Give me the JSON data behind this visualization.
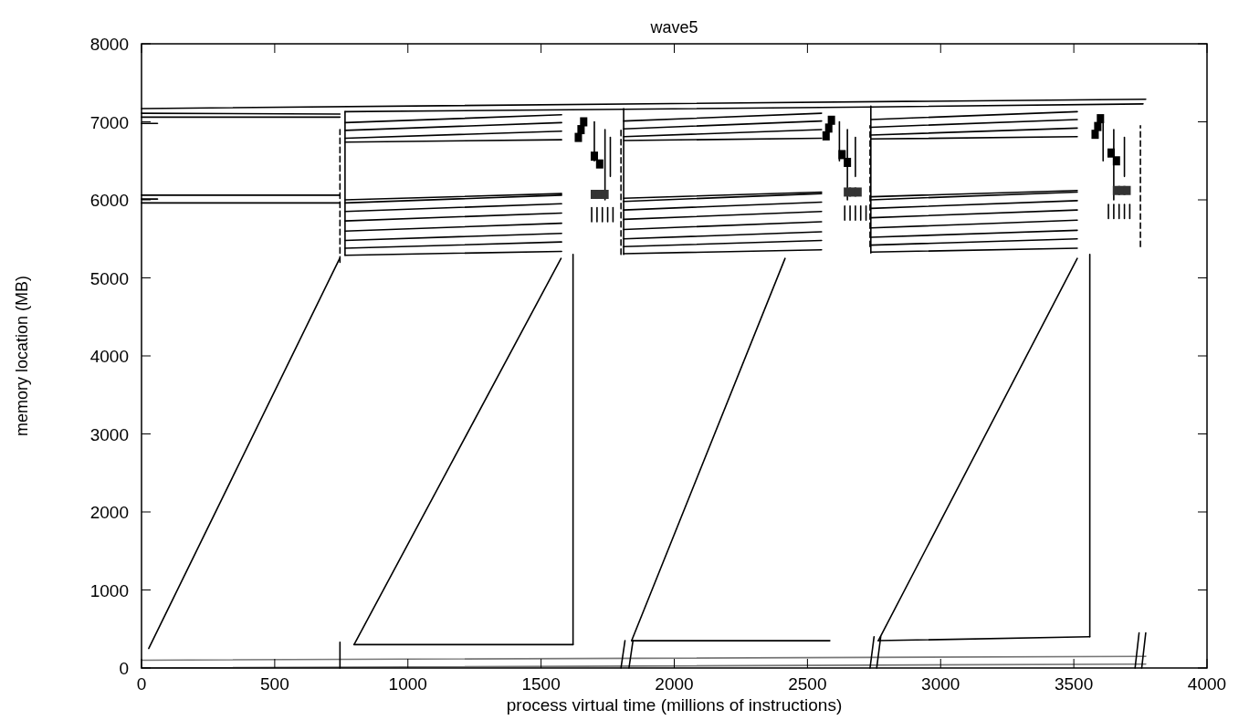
{
  "chart_data": {
    "type": "line",
    "title": "wave5",
    "xlabel": "process virtual time (millions of instructions)",
    "ylabel": "memory location (MB)",
    "xlim": [
      0,
      4000
    ],
    "ylim": [
      0,
      8000
    ],
    "xticks": [
      0,
      500,
      1000,
      1500,
      2000,
      2500,
      3000,
      3500,
      4000
    ],
    "yticks": [
      0,
      1000,
      2000,
      3000,
      4000,
      5000,
      6000,
      7000,
      8000
    ],
    "grid": false,
    "marker": "none",
    "line_style": "solid",
    "series": [
      {
        "color": "#000000",
        "x": [
          27,
          744
        ],
        "values": [
          250,
          5250
        ]
      },
      {
        "color": "#000000",
        "x": [
          798,
          1575
        ],
        "values": [
          300,
          5250
        ]
      },
      {
        "color": "#000000",
        "x": [
          798,
          1620
        ],
        "values": [
          300,
          300
        ]
      },
      {
        "color": "#000000",
        "x": [
          1620,
          1620
        ],
        "values": [
          300,
          5300
        ]
      },
      {
        "color": "#000000",
        "x": [
          1840,
          2416
        ],
        "values": [
          350,
          5250
        ]
      },
      {
        "color": "#000000",
        "x": [
          1840,
          2584
        ],
        "values": [
          350,
          350
        ]
      },
      {
        "color": "#000000",
        "x": [
          2766,
          3513
        ],
        "values": [
          350,
          5250
        ]
      },
      {
        "color": "#000000",
        "x": [
          2766,
          3560
        ],
        "values": [
          350,
          400
        ]
      },
      {
        "color": "#000000",
        "x": [
          3560,
          3560
        ],
        "values": [
          400,
          5300
        ]
      },
      {
        "color": "#000000",
        "x": [
          0,
          3770
        ],
        "values": [
          7170,
          7290
        ]
      },
      {
        "color": "#000000",
        "x": [
          0,
          745
        ],
        "values": [
          7110,
          7100
        ]
      },
      {
        "color": "#000000",
        "x": [
          0,
          745
        ],
        "values": [
          7060,
          7060
        ]
      },
      {
        "color": "#000000",
        "x": [
          0,
          60
        ],
        "values": [
          6980,
          6980
        ]
      },
      {
        "color": "#000000",
        "x": [
          0,
          745
        ],
        "values": [
          6060,
          6060
        ]
      },
      {
        "color": "#000000",
        "x": [
          0,
          745
        ],
        "values": [
          5960,
          5960
        ]
      },
      {
        "color": "#000000",
        "x": [
          0,
          60
        ],
        "values": [
          6010,
          6010
        ]
      },
      {
        "color": "#000000",
        "x": [
          764,
          764
        ],
        "values": [
          5290,
          7130
        ]
      },
      {
        "color": "#000000",
        "x": [
          764,
          1810,
          2738,
          3760
        ],
        "values": [
          7130,
          7160,
          7190,
          7230
        ]
      },
      {
        "color": "#000000",
        "x": [
          1810,
          1810
        ],
        "values": [
          5300,
          7170
        ]
      },
      {
        "color": "#000000",
        "x": [
          2738,
          2738
        ],
        "values": [
          5320,
          7200
        ]
      },
      {
        "color": "#000000",
        "x": [
          764,
          1577
        ],
        "values": [
          6990,
          7090
        ]
      },
      {
        "color": "#000000",
        "x": [
          764,
          1577
        ],
        "values": [
          6890,
          6990
        ]
      },
      {
        "color": "#000000",
        "x": [
          764,
          1577
        ],
        "values": [
          6790,
          6880
        ]
      },
      {
        "color": "#000000",
        "x": [
          764,
          1577
        ],
        "values": [
          6740,
          6770
        ]
      },
      {
        "color": "#000000",
        "x": [
          1810,
          2553
        ],
        "values": [
          7010,
          7110
        ]
      },
      {
        "color": "#000000",
        "x": [
          1810,
          2553
        ],
        "values": [
          6910,
          7010
        ]
      },
      {
        "color": "#000000",
        "x": [
          1810,
          2553
        ],
        "values": [
          6810,
          6900
        ]
      },
      {
        "color": "#000000",
        "x": [
          1810,
          2553
        ],
        "values": [
          6760,
          6790
        ]
      },
      {
        "color": "#000000",
        "x": [
          2738,
          3513
        ],
        "values": [
          7030,
          7130
        ]
      },
      {
        "color": "#000000",
        "x": [
          2738,
          3513
        ],
        "values": [
          6930,
          7030
        ]
      },
      {
        "color": "#000000",
        "x": [
          2738,
          3513
        ],
        "values": [
          6830,
          6920
        ]
      },
      {
        "color": "#000000",
        "x": [
          2738,
          3513
        ],
        "values": [
          6780,
          6810
        ]
      },
      {
        "color": "#000000",
        "x": [
          764,
          1577
        ],
        "values": [
          6000,
          6080
        ]
      },
      {
        "color": "#000000",
        "x": [
          764,
          1577
        ],
        "values": [
          5960,
          6060
        ]
      },
      {
        "color": "#000000",
        "x": [
          764,
          1577
        ],
        "values": [
          5850,
          5950
        ]
      },
      {
        "color": "#000000",
        "x": [
          764,
          1577
        ],
        "values": [
          5730,
          5830
        ]
      },
      {
        "color": "#000000",
        "x": [
          764,
          1577
        ],
        "values": [
          5600,
          5700
        ]
      },
      {
        "color": "#000000",
        "x": [
          764,
          1577
        ],
        "values": [
          5480,
          5570
        ]
      },
      {
        "color": "#000000",
        "x": [
          764,
          1577
        ],
        "values": [
          5380,
          5460
        ]
      },
      {
        "color": "#000000",
        "x": [
          764,
          1577
        ],
        "values": [
          5290,
          5340
        ]
      },
      {
        "color": "#000000",
        "x": [
          1810,
          2553
        ],
        "values": [
          6020,
          6100
        ]
      },
      {
        "color": "#000000",
        "x": [
          1810,
          2553
        ],
        "values": [
          5980,
          6080
        ]
      },
      {
        "color": "#000000",
        "x": [
          1810,
          2553
        ],
        "values": [
          5870,
          5970
        ]
      },
      {
        "color": "#000000",
        "x": [
          1810,
          2553
        ],
        "values": [
          5750,
          5850
        ]
      },
      {
        "color": "#000000",
        "x": [
          1810,
          2553
        ],
        "values": [
          5620,
          5720
        ]
      },
      {
        "color": "#000000",
        "x": [
          1810,
          2553
        ],
        "values": [
          5500,
          5590
        ]
      },
      {
        "color": "#000000",
        "x": [
          1810,
          2553
        ],
        "values": [
          5400,
          5480
        ]
      },
      {
        "color": "#000000",
        "x": [
          1810,
          2553
        ],
        "values": [
          5310,
          5360
        ]
      },
      {
        "color": "#000000",
        "x": [
          2738,
          3513
        ],
        "values": [
          6040,
          6120
        ]
      },
      {
        "color": "#000000",
        "x": [
          2738,
          3513
        ],
        "values": [
          6000,
          6100
        ]
      },
      {
        "color": "#000000",
        "x": [
          2738,
          3513
        ],
        "values": [
          5890,
          5990
        ]
      },
      {
        "color": "#000000",
        "x": [
          2738,
          3513
        ],
        "values": [
          5770,
          5870
        ]
      },
      {
        "color": "#000000",
        "x": [
          2738,
          3513
        ],
        "values": [
          5640,
          5740
        ]
      },
      {
        "color": "#000000",
        "x": [
          2738,
          3513
        ],
        "values": [
          5520,
          5610
        ]
      },
      {
        "color": "#000000",
        "x": [
          2738,
          3513
        ],
        "values": [
          5420,
          5500
        ]
      },
      {
        "color": "#000000",
        "x": [
          2738,
          3513
        ],
        "values": [
          5330,
          5380
        ]
      },
      {
        "color": "#000000",
        "line_style": "dashed",
        "x": [
          745,
          745
        ],
        "values": [
          5200,
          6900
        ]
      },
      {
        "color": "#000000",
        "line_style": "dashed",
        "x": [
          1800,
          1800
        ],
        "values": [
          5300,
          6900
        ]
      },
      {
        "color": "#000000",
        "line_style": "dashed",
        "x": [
          2735,
          2735
        ],
        "values": [
          5400,
          6950
        ]
      },
      {
        "color": "#000000",
        "line_style": "dashed",
        "x": [
          3750,
          3750
        ],
        "values": [
          5400,
          6950
        ]
      },
      {
        "color": "#000000",
        "x": [
          1690,
          1690
        ],
        "values": [
          5720,
          5900
        ]
      },
      {
        "color": "#000000",
        "x": [
          1710,
          1710
        ],
        "values": [
          5720,
          5900
        ]
      },
      {
        "color": "#000000",
        "x": [
          1730,
          1730
        ],
        "values": [
          5720,
          5900
        ]
      },
      {
        "color": "#000000",
        "x": [
          1750,
          1750
        ],
        "values": [
          5720,
          5900
        ]
      },
      {
        "color": "#000000",
        "x": [
          1770,
          1770
        ],
        "values": [
          5720,
          5900
        ]
      },
      {
        "color": "#000000",
        "x": [
          2640,
          2640
        ],
        "values": [
          5740,
          5920
        ]
      },
      {
        "color": "#000000",
        "x": [
          2660,
          2660
        ],
        "values": [
          5740,
          5920
        ]
      },
      {
        "color": "#000000",
        "x": [
          2680,
          2680
        ],
        "values": [
          5740,
          5920
        ]
      },
      {
        "color": "#000000",
        "x": [
          2700,
          2700
        ],
        "values": [
          5740,
          5920
        ]
      },
      {
        "color": "#000000",
        "x": [
          2720,
          2720
        ],
        "values": [
          5740,
          5920
        ]
      },
      {
        "color": "#000000",
        "x": [
          3630,
          3630
        ],
        "values": [
          5760,
          5940
        ]
      },
      {
        "color": "#000000",
        "x": [
          3650,
          3650
        ],
        "values": [
          5760,
          5940
        ]
      },
      {
        "color": "#000000",
        "x": [
          3670,
          3670
        ],
        "values": [
          5760,
          5940
        ]
      },
      {
        "color": "#000000",
        "x": [
          3690,
          3690
        ],
        "values": [
          5760,
          5940
        ]
      },
      {
        "color": "#000000",
        "x": [
          3710,
          3710
        ],
        "values": [
          5760,
          5940
        ]
      },
      {
        "color": "#000000",
        "x": [
          1700,
          1700
        ],
        "values": [
          6500,
          7000
        ]
      },
      {
        "color": "#000000",
        "x": [
          1740,
          1740
        ],
        "values": [
          6000,
          6900
        ]
      },
      {
        "color": "#000000",
        "x": [
          1760,
          1760
        ],
        "values": [
          6300,
          6800
        ]
      },
      {
        "color": "#000000",
        "x": [
          2620,
          2620
        ],
        "values": [
          6500,
          7000
        ]
      },
      {
        "color": "#000000",
        "x": [
          2650,
          2650
        ],
        "values": [
          6000,
          6900
        ]
      },
      {
        "color": "#000000",
        "x": [
          2680,
          2680
        ],
        "values": [
          6300,
          6800
        ]
      },
      {
        "color": "#000000",
        "x": [
          3610,
          3610
        ],
        "values": [
          6500,
          7000
        ]
      },
      {
        "color": "#000000",
        "x": [
          3650,
          3650
        ],
        "values": [
          6000,
          6900
        ]
      },
      {
        "color": "#000000",
        "x": [
          3690,
          3690
        ],
        "values": [
          6300,
          6800
        ]
      },
      {
        "type": "scatter",
        "marker": "square",
        "color": "#000000",
        "x": [
          1660,
          1650,
          1640,
          1700,
          1720,
          2590,
          2580,
          2570,
          2630,
          2650,
          3600,
          3590,
          3580,
          3640,
          3660
        ],
        "values": [
          7000,
          6900,
          6800,
          6560,
          6460,
          7020,
          6920,
          6820,
          6580,
          6480,
          7040,
          6940,
          6840,
          6600,
          6500
        ]
      },
      {
        "type": "scatter",
        "marker": "square",
        "color": "#333333",
        "x": [
          1700,
          1720,
          1740,
          2650,
          2670,
          2690,
          3660,
          3680,
          3700
        ],
        "values": [
          6070,
          6070,
          6070,
          6100,
          6100,
          6100,
          6120,
          6120,
          6120
        ]
      },
      {
        "color": "#777777",
        "x": [
          0,
          3770
        ],
        "values": [
          100,
          150
        ]
      },
      {
        "color": "#777777",
        "x": [
          0,
          3770
        ],
        "values": [
          0,
          50
        ]
      },
      {
        "color": "#000000",
        "x": [
          745,
          745
        ],
        "values": [
          0,
          330
        ]
      },
      {
        "color": "#000000",
        "x": [
          1800,
          1815
        ],
        "values": [
          0,
          350
        ]
      },
      {
        "color": "#000000",
        "x": [
          1830,
          1845
        ],
        "values": [
          0,
          350
        ]
      },
      {
        "color": "#000000",
        "x": [
          2735,
          2750
        ],
        "values": [
          0,
          400
        ]
      },
      {
        "color": "#000000",
        "x": [
          2760,
          2775
        ],
        "values": [
          0,
          400
        ]
      },
      {
        "color": "#000000",
        "x": [
          3730,
          3745
        ],
        "values": [
          0,
          450
        ]
      },
      {
        "color": "#000000",
        "x": [
          3755,
          3770
        ],
        "values": [
          0,
          450
        ]
      }
    ]
  }
}
